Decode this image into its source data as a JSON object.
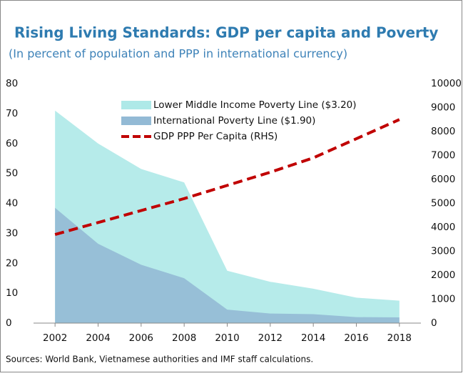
{
  "chart_data": {
    "type": "area",
    "title": "Rising Living Standards: GDP per capita and Poverty",
    "subtitle": "(In percent of population and PPP in international currency)",
    "source": "Sources: World Bank, Vietnamese authorities and IMF staff calculations.",
    "x": [
      2002,
      2004,
      2006,
      2008,
      2010,
      2012,
      2014,
      2016,
      2018
    ],
    "xlim": [
      2001,
      2019
    ],
    "xticks": [
      2002,
      2004,
      2006,
      2008,
      2010,
      2012,
      2014,
      2016,
      2018
    ],
    "ylim": [
      0,
      80
    ],
    "yticks": [
      0,
      10,
      20,
      30,
      40,
      50,
      60,
      70,
      80
    ],
    "y2lim": [
      0,
      10000
    ],
    "y2ticks": [
      0,
      1000,
      2000,
      3000,
      4000,
      5000,
      6000,
      7000,
      8000,
      9000,
      10000
    ],
    "series": [
      {
        "name": "Lower Middle Income Poverty Line ($3.20)",
        "type": "area",
        "color": "#aee9e8",
        "values": [
          71,
          60,
          51.5,
          47,
          17.5,
          13.8,
          11.5,
          8.5,
          7.5
        ]
      },
      {
        "name": "International Poverty Line ($1.90)",
        "type": "area",
        "color": "#93bad5",
        "values": [
          38.5,
          26.5,
          19.5,
          15,
          4.5,
          3.2,
          3,
          2,
          1.9
        ]
      },
      {
        "name": "GDP PPP Per Capita (RHS)",
        "type": "line",
        "axis": "y2",
        "color": "#c00000",
        "values": [
          3700,
          4200,
          4700,
          5200,
          5750,
          6300,
          6900,
          7700,
          8500
        ]
      }
    ]
  }
}
